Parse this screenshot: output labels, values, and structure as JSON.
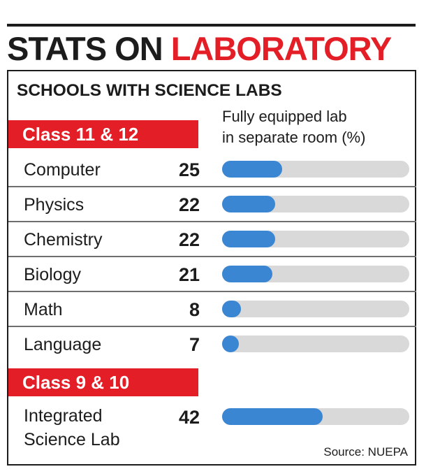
{
  "header": {
    "title_part1": "STATS ON ",
    "title_part2": "LABORATORY",
    "subtitle": "SCHOOLS WITH SCIENCE LABS",
    "column_header_line1": "Fully equipped lab",
    "column_header_line2": "in separate room (%)"
  },
  "source": "Source: NUEPA",
  "colors": {
    "accent": "#e31e26",
    "bar_fill": "#3a86d3",
    "bar_track": "#d9d9d9",
    "text": "#1c1c1c"
  },
  "chart_data": {
    "type": "bar",
    "orientation": "horizontal",
    "xlim": [
      0,
      100
    ],
    "groups": [
      {
        "name": "Class 11 & 12",
        "categories": [
          "Computer",
          "Physics",
          "Chemistry",
          "Biology",
          "Math",
          "Language"
        ],
        "values": [
          25,
          22,
          22,
          21,
          8,
          7
        ]
      },
      {
        "name": "Class 9 & 10",
        "categories": [
          "Integrated\nScience Lab"
        ],
        "values": [
          42
        ]
      }
    ]
  }
}
